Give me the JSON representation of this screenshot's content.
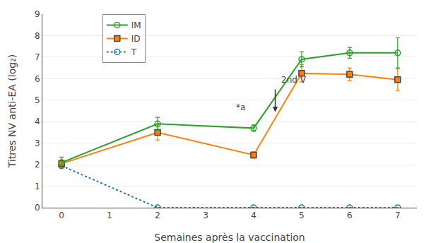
{
  "chart_data": {
    "type": "line",
    "xlabel": "Semaines après la vaccination",
    "ylabel": "Titres NV anti-EA (log₂)",
    "x": [
      0,
      2,
      4,
      5,
      6,
      7
    ],
    "series": [
      {
        "name": "IM",
        "values": [
          2.1,
          3.9,
          3.7,
          6.9,
          7.2,
          7.2
        ],
        "error": [
          0.25,
          0.3,
          0.15,
          0.35,
          0.25,
          0.7
        ],
        "marker": "circle-open",
        "line_style": "solid"
      },
      {
        "name": "ID",
        "values": [
          2.05,
          3.5,
          2.45,
          6.25,
          6.2,
          5.95
        ],
        "error": [
          0.15,
          0.35,
          0.15,
          0.4,
          0.3,
          0.5
        ],
        "marker": "square",
        "line_style": "solid"
      },
      {
        "name": "T",
        "values": [
          1.95,
          0.0,
          0.0,
          0.0,
          0.0,
          0.0
        ],
        "error": [
          0.0,
          0.0,
          0.0,
          0.0,
          0.0,
          0.0
        ],
        "marker": "circle-open",
        "line_style": "dotted"
      }
    ],
    "xlim": [
      -0.4,
      7.4
    ],
    "xticks": [
      0,
      1,
      2,
      3,
      4,
      5,
      6,
      7
    ],
    "ylim": [
      0,
      9
    ],
    "yticks": [
      0,
      1,
      2,
      3,
      4,
      5,
      6,
      7,
      8,
      9
    ],
    "grid": true,
    "legend": "upper left",
    "annotations": [
      {
        "text": "2nd V",
        "x": 4.55,
        "y": 5.65,
        "arrow_x": 4.45,
        "arrow_tip": 4.45,
        "arrow_tail": 5.55
      },
      {
        "text": "*a",
        "x": 3.85,
        "y": 4.65
      }
    ]
  }
}
